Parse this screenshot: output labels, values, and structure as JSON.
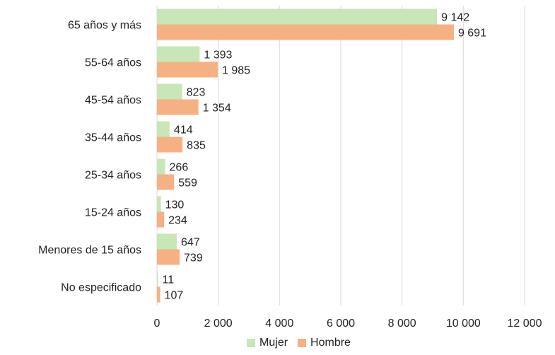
{
  "chart_data": {
    "type": "bar",
    "orientation": "horizontal",
    "categories": [
      "65 años y más",
      "55-64 años",
      "45-54 años",
      "35-44 años",
      "25-34 años",
      "15-24 años",
      "Menores de 15 años",
      "No especificado"
    ],
    "series": [
      {
        "name": "Mujer",
        "color": "#c9e6b8",
        "values": [
          9142,
          1393,
          823,
          414,
          266,
          130,
          647,
          11
        ],
        "labels": [
          "9 142",
          "1 393",
          "823",
          "414",
          "266",
          "130",
          "647",
          "11"
        ]
      },
      {
        "name": "Hombre",
        "color": "#f5b183",
        "values": [
          9691,
          1985,
          1354,
          835,
          559,
          234,
          739,
          107
        ],
        "labels": [
          "9 691",
          "1 985",
          "1 354",
          "835",
          "559",
          "234",
          "739",
          "107"
        ]
      }
    ],
    "xlim": [
      0,
      12000
    ],
    "xticks": [
      0,
      2000,
      4000,
      6000,
      8000,
      10000,
      12000
    ],
    "xtick_labels": [
      "0",
      "2 000",
      "4 000",
      "6 000",
      "8 000",
      "10 000",
      "12 000"
    ],
    "grid": true,
    "legend_position": "bottom",
    "title": "",
    "xlabel": "",
    "ylabel": ""
  }
}
